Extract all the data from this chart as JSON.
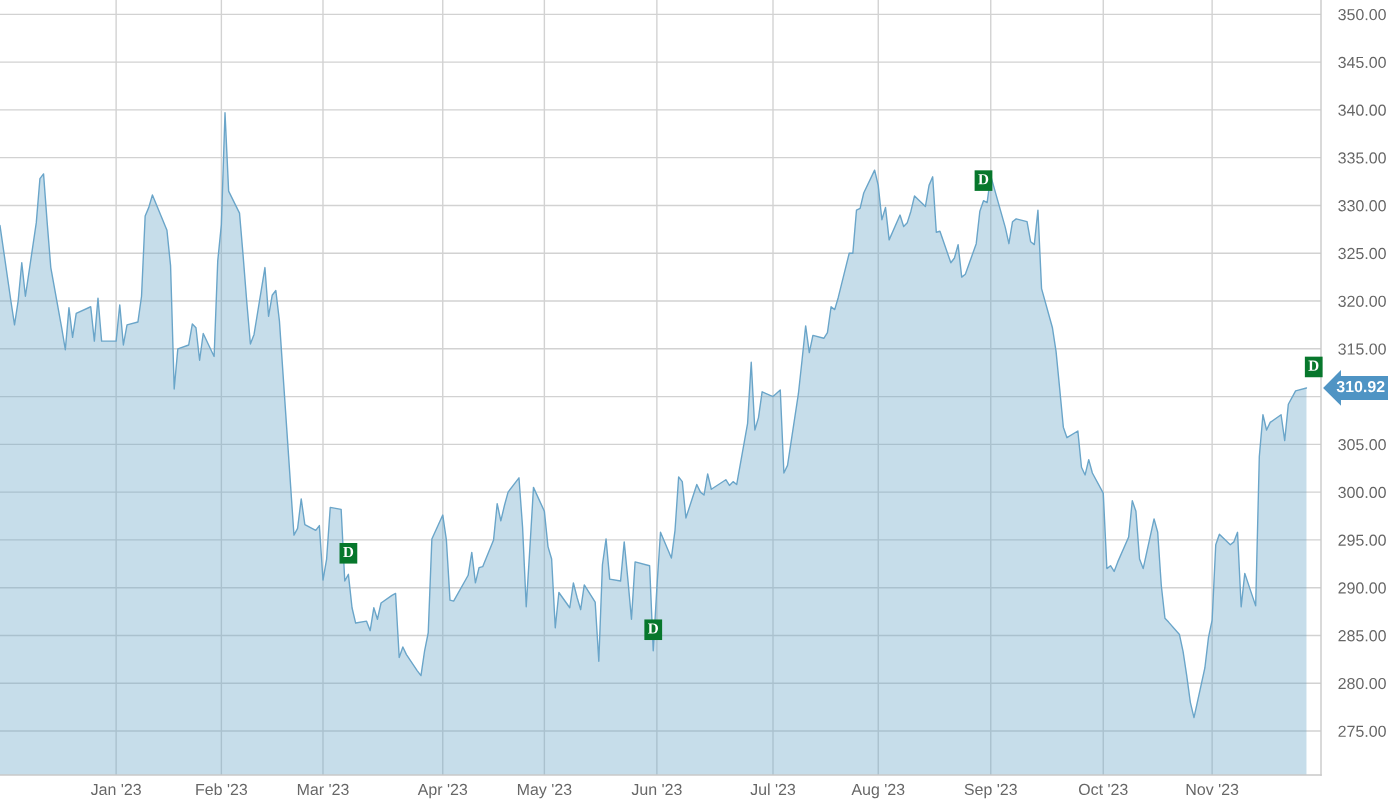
{
  "chart_data": {
    "type": "area",
    "x": [
      "2022-12-02",
      "2022-12-05",
      "2022-12-06",
      "2022-12-07",
      "2022-12-08",
      "2022-12-09",
      "2022-12-12",
      "2022-12-13",
      "2022-12-14",
      "2022-12-15",
      "2022-12-16",
      "2022-12-19",
      "2022-12-20",
      "2022-12-21",
      "2022-12-22",
      "2022-12-23",
      "2022-12-27",
      "2022-12-28",
      "2022-12-29",
      "2022-12-30",
      "2023-01-03",
      "2023-01-04",
      "2023-01-05",
      "2023-01-06",
      "2023-01-09",
      "2023-01-10",
      "2023-01-11",
      "2023-01-12",
      "2023-01-13",
      "2023-01-17",
      "2023-01-18",
      "2023-01-19",
      "2023-01-20",
      "2023-01-23",
      "2023-01-24",
      "2023-01-25",
      "2023-01-26",
      "2023-01-27",
      "2023-01-30",
      "2023-01-31",
      "2023-02-01",
      "2023-02-02",
      "2023-02-03",
      "2023-02-06",
      "2023-02-07",
      "2023-02-08",
      "2023-02-09",
      "2023-02-10",
      "2023-02-13",
      "2023-02-14",
      "2023-02-15",
      "2023-02-16",
      "2023-02-17",
      "2023-02-21",
      "2023-02-22",
      "2023-02-23",
      "2023-02-24",
      "2023-02-27",
      "2023-02-28",
      "2023-03-01",
      "2023-03-02",
      "2023-03-03",
      "2023-03-06",
      "2023-03-07",
      "2023-03-08",
      "2023-03-09",
      "2023-03-10",
      "2023-03-13",
      "2023-03-14",
      "2023-03-15",
      "2023-03-16",
      "2023-03-17",
      "2023-03-20",
      "2023-03-21",
      "2023-03-22",
      "2023-03-23",
      "2023-03-24",
      "2023-03-27",
      "2023-03-28",
      "2023-03-29",
      "2023-03-30",
      "2023-03-31",
      "2023-04-03",
      "2023-04-04",
      "2023-04-05",
      "2023-04-06",
      "2023-04-10",
      "2023-04-11",
      "2023-04-12",
      "2023-04-13",
      "2023-04-14",
      "2023-04-17",
      "2023-04-18",
      "2023-04-19",
      "2023-04-20",
      "2023-04-21",
      "2023-04-24",
      "2023-04-25",
      "2023-04-26",
      "2023-04-27",
      "2023-04-28",
      "2023-05-01",
      "2023-05-02",
      "2023-05-03",
      "2023-05-04",
      "2023-05-05",
      "2023-05-08",
      "2023-05-09",
      "2023-05-10",
      "2023-05-11",
      "2023-05-12",
      "2023-05-15",
      "2023-05-16",
      "2023-05-17",
      "2023-05-18",
      "2023-05-19",
      "2023-05-22",
      "2023-05-23",
      "2023-05-24",
      "2023-05-25",
      "2023-05-26",
      "2023-05-30",
      "2023-05-31",
      "2023-06-01",
      "2023-06-02",
      "2023-06-05",
      "2023-06-06",
      "2023-06-07",
      "2023-06-08",
      "2023-06-09",
      "2023-06-12",
      "2023-06-13",
      "2023-06-14",
      "2023-06-15",
      "2023-06-16",
      "2023-06-20",
      "2023-06-21",
      "2023-06-22",
      "2023-06-23",
      "2023-06-26",
      "2023-06-27",
      "2023-06-28",
      "2023-06-29",
      "2023-06-30",
      "2023-07-03",
      "2023-07-05",
      "2023-07-06",
      "2023-07-07",
      "2023-07-10",
      "2023-07-11",
      "2023-07-12",
      "2023-07-13",
      "2023-07-14",
      "2023-07-17",
      "2023-07-18",
      "2023-07-19",
      "2023-07-20",
      "2023-07-21",
      "2023-07-24",
      "2023-07-25",
      "2023-07-26",
      "2023-07-27",
      "2023-07-28",
      "2023-07-31",
      "2023-08-01",
      "2023-08-02",
      "2023-08-03",
      "2023-08-04",
      "2023-08-07",
      "2023-08-08",
      "2023-08-09",
      "2023-08-10",
      "2023-08-11",
      "2023-08-14",
      "2023-08-15",
      "2023-08-16",
      "2023-08-17",
      "2023-08-18",
      "2023-08-21",
      "2023-08-22",
      "2023-08-23",
      "2023-08-24",
      "2023-08-25",
      "2023-08-28",
      "2023-08-29",
      "2023-08-30",
      "2023-08-31",
      "2023-09-01",
      "2023-09-05",
      "2023-09-06",
      "2023-09-07",
      "2023-09-08",
      "2023-09-11",
      "2023-09-12",
      "2023-09-13",
      "2023-09-14",
      "2023-09-15",
      "2023-09-18",
      "2023-09-19",
      "2023-09-20",
      "2023-09-21",
      "2023-09-22",
      "2023-09-25",
      "2023-09-26",
      "2023-09-27",
      "2023-09-28",
      "2023-09-29",
      "2023-10-02",
      "2023-10-03",
      "2023-10-04",
      "2023-10-05",
      "2023-10-06",
      "2023-10-09",
      "2023-10-10",
      "2023-10-11",
      "2023-10-12",
      "2023-10-13",
      "2023-10-16",
      "2023-10-17",
      "2023-10-18",
      "2023-10-19",
      "2023-10-20",
      "2023-10-23",
      "2023-10-24",
      "2023-10-25",
      "2023-10-26",
      "2023-10-27",
      "2023-10-30",
      "2023-10-31",
      "2023-11-01",
      "2023-11-02",
      "2023-11-03",
      "2023-11-06",
      "2023-11-07",
      "2023-11-08",
      "2023-11-09",
      "2023-11-10",
      "2023-11-13",
      "2023-11-14",
      "2023-11-15",
      "2023-11-16",
      "2023-11-17",
      "2023-11-20",
      "2023-11-21",
      "2023-11-22",
      "2023-11-24",
      "2023-11-27"
    ],
    "series": [
      {
        "color": "#6aa5c9",
        "values": [
          327.9,
          320.0,
          317.5,
          320.0,
          324.0,
          320.5,
          328.2,
          332.8,
          333.3,
          328.2,
          323.5,
          317.2,
          314.9,
          319.3,
          316.2,
          318.7,
          319.4,
          315.8,
          320.3,
          315.8,
          315.8,
          319.6,
          315.4,
          317.5,
          317.8,
          320.5,
          328.9,
          329.8,
          331.1,
          327.4,
          323.7,
          310.8,
          315.0,
          315.4,
          317.6,
          317.2,
          313.8,
          316.6,
          314.2,
          324.2,
          328.0,
          339.7,
          331.5,
          329.2,
          324.7,
          319.9,
          315.5,
          316.5,
          323.5,
          318.4,
          320.6,
          321.1,
          317.9,
          295.5,
          296.2,
          299.3,
          296.6,
          296.0,
          296.5,
          290.8,
          293.0,
          298.4,
          298.2,
          290.7,
          291.4,
          287.9,
          286.3,
          286.5,
          285.5,
          287.9,
          286.7,
          288.4,
          289.2,
          289.4,
          282.7,
          283.8,
          283.0,
          281.3,
          280.8,
          283.4,
          285.3,
          295.1,
          297.6,
          295.0,
          288.7,
          288.6,
          291.3,
          293.7,
          290.5,
          292.1,
          292.2,
          295.0,
          298.8,
          297.0,
          298.6,
          300.0,
          301.5,
          296.3,
          288.0,
          294.1,
          300.5,
          298.0,
          294.3,
          293.0,
          285.8,
          289.5,
          287.9,
          290.5,
          289.0,
          287.7,
          290.3,
          288.5,
          282.3,
          292.4,
          295.1,
          290.9,
          290.7,
          294.8,
          290.9,
          286.7,
          292.7,
          292.3,
          283.4,
          290.0,
          295.8,
          293.1,
          296.0,
          301.6,
          301.1,
          297.3,
          300.8,
          300.0,
          299.7,
          301.9,
          300.3,
          301.3,
          300.7,
          301.1,
          300.8,
          307.2,
          313.6,
          306.5,
          307.8,
          310.5,
          310.0,
          310.7,
          302.0,
          302.8,
          310.3,
          313.8,
          317.4,
          314.6,
          316.4,
          316.1,
          316.7,
          319.4,
          319.1,
          320.4,
          325.0,
          325.0,
          329.5,
          329.7,
          331.3,
          333.7,
          332.1,
          328.5,
          329.8,
          326.4,
          329.0,
          327.8,
          328.2,
          329.4,
          331.0,
          329.9,
          332.1,
          333.0,
          327.2,
          327.3,
          324.0,
          324.5,
          325.9,
          322.5,
          322.8,
          326.0,
          329.4,
          330.5,
          330.3,
          333.1,
          327.7,
          326.0,
          328.3,
          328.6,
          328.3,
          326.2,
          325.9,
          329.5,
          321.3,
          317.2,
          314.7,
          310.8,
          306.8,
          305.7,
          306.4,
          302.6,
          301.8,
          303.4,
          302.0,
          299.9,
          292.0,
          292.3,
          291.7,
          292.7,
          295.3,
          299.1,
          298.0,
          293.0,
          292.0,
          297.2,
          295.8,
          290.2,
          286.8,
          286.4,
          285.1,
          283.3,
          280.8,
          278.0,
          276.4,
          281.6,
          284.8,
          286.6,
          294.5,
          295.6,
          294.5,
          294.8,
          295.8,
          288.0,
          291.5,
          288.1,
          303.7,
          308.1,
          306.5,
          307.3,
          308.1,
          305.4,
          309.2,
          310.6,
          310.9
        ]
      }
    ],
    "xlim": [
      "2022-12-02",
      "2023-12-01"
    ],
    "xticks": [
      {
        "value": "2023-01-03",
        "label": "Jan '23"
      },
      {
        "value": "2023-02-01",
        "label": "Feb '23"
      },
      {
        "value": "2023-03-01",
        "label": "Mar '23"
      },
      {
        "value": "2023-04-03",
        "label": "Apr '23"
      },
      {
        "value": "2023-05-01",
        "label": "May '23"
      },
      {
        "value": "2023-06-01",
        "label": "Jun '23"
      },
      {
        "value": "2023-07-03",
        "label": "Jul '23"
      },
      {
        "value": "2023-08-01",
        "label": "Aug '23"
      },
      {
        "value": "2023-09-01",
        "label": "Sep '23"
      },
      {
        "value": "2023-10-02",
        "label": "Oct '23"
      },
      {
        "value": "2023-11-01",
        "label": "Nov '23"
      }
    ],
    "ylim": [
      270.4,
      351.5
    ],
    "yticks": [
      {
        "value": 275,
        "label": "275.00"
      },
      {
        "value": 280,
        "label": "280.00"
      },
      {
        "value": 285,
        "label": "285.00"
      },
      {
        "value": 290,
        "label": "290.00"
      },
      {
        "value": 295,
        "label": "295.00"
      },
      {
        "value": 300,
        "label": "300.00"
      },
      {
        "value": 305,
        "label": "305.00"
      },
      {
        "value": 310,
        "label": null
      },
      {
        "value": 315,
        "label": "315.00"
      },
      {
        "value": 320,
        "label": "320.00"
      },
      {
        "value": 325,
        "label": "325.00"
      },
      {
        "value": 330,
        "label": "330.00"
      },
      {
        "value": 335,
        "label": "335.00"
      },
      {
        "value": 340,
        "label": "340.00"
      },
      {
        "value": 345,
        "label": "345.00"
      },
      {
        "value": 350,
        "label": "350.00"
      }
    ],
    "grid": true,
    "annotations": [
      {
        "text": "D",
        "x": "2023-03-08",
        "y": 293.6
      },
      {
        "text": "D",
        "x": "2023-05-31",
        "y": 285.6
      },
      {
        "text": "D",
        "x": "2023-08-30",
        "y": 332.6
      },
      {
        "text": "D",
        "x": "2023-11-29",
        "y": 313.1
      },
      "310.92"
    ]
  }
}
